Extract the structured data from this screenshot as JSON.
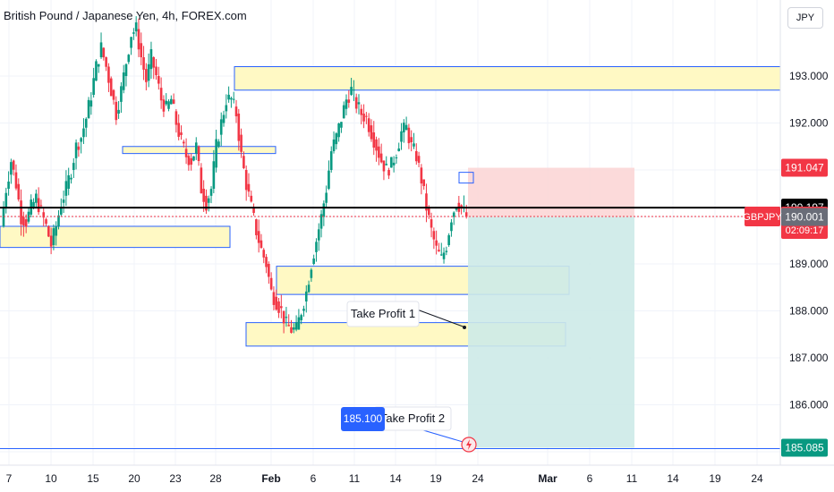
{
  "header": {
    "title": "British Pound / Japanese Yen, 4h, FOREX.com",
    "currency_button": "JPY"
  },
  "price_scale": {
    "labels": [
      "193.000",
      "192.000",
      "189.000",
      "188.000",
      "187.000",
      "186.000"
    ],
    "tags": {
      "stop": "191.047",
      "ref": "190.197",
      "symbol": "GBPJPY",
      "last": "190.010",
      "countdown": "02:09:17",
      "entry": "190.001",
      "target": "185.085"
    }
  },
  "time_axis": {
    "labels": [
      "7",
      "10",
      "15",
      "20",
      "23",
      "28",
      "Feb",
      "6",
      "11",
      "14",
      "19",
      "24",
      "Mar",
      "6",
      "11",
      "14",
      "19",
      "24"
    ]
  },
  "annotations": {
    "tp1": "Take Profit 1",
    "tp2": "Take Profit 2",
    "tp2_price": "185.100"
  },
  "colors": {
    "up": "#089981",
    "down": "#f23645",
    "zone_fill": "#fff9c4",
    "zone_border": "#2962ff",
    "stop_fill": "#fbd3d3",
    "target_fill": "#cdeae8",
    "ref_line": "#000000",
    "last_line": "#f23645"
  },
  "chart_data": {
    "type": "candlestick",
    "symbol": "GBPJPY",
    "interval": "4h",
    "ylim": [
      184.9,
      194.3
    ],
    "y_ticks": [
      193,
      192,
      191,
      190,
      189,
      188,
      187,
      186,
      185
    ],
    "close_path": [
      189.8,
      190.6,
      191.2,
      190.7,
      190.0,
      189.9,
      190.2,
      190.4,
      190.1,
      189.8,
      189.4,
      189.8,
      190.3,
      190.6,
      191.0,
      191.5,
      191.7,
      192.1,
      192.6,
      193.2,
      193.6,
      193.2,
      192.7,
      192.2,
      192.7,
      193.3,
      193.9,
      194.0,
      193.4,
      192.9,
      193.4,
      193.0,
      192.5,
      192.3,
      192.5,
      192.0,
      191.6,
      191.3,
      191.2,
      191.5,
      190.6,
      190.3,
      190.6,
      191.5,
      192.0,
      192.5,
      192.5,
      192.2,
      191.3,
      190.7,
      190.2,
      189.7,
      189.3,
      189.0,
      188.4,
      188.2,
      188.0,
      187.7,
      187.6,
      187.6,
      188.0,
      188.4,
      189.0,
      189.5,
      190.0,
      190.6,
      191.4,
      191.7,
      192.1,
      192.5,
      192.7,
      192.4,
      192.2,
      192.1,
      191.8,
      191.5,
      191.2,
      191.0,
      191.1,
      191.4,
      191.8,
      191.9,
      191.5,
      191.3,
      190.8,
      190.2,
      189.7,
      189.3,
      189.1,
      189.4,
      190.0,
      190.3,
      190.2,
      190.0
    ],
    "zones": [
      {
        "from": 193.2,
        "to": 192.7
      },
      {
        "from": 191.5,
        "to": 191.35
      },
      {
        "from": 189.8,
        "to": 189.35
      },
      {
        "from": 188.95,
        "to": 188.35
      },
      {
        "from": 187.75,
        "to": 187.25
      }
    ],
    "position": {
      "side": "short",
      "entry": 190.001,
      "stop": 191.047,
      "target": 185.085
    },
    "reference_line": 190.197,
    "last_price": 190.01,
    "take_profit_1": 187.7,
    "take_profit_2": 185.1
  }
}
